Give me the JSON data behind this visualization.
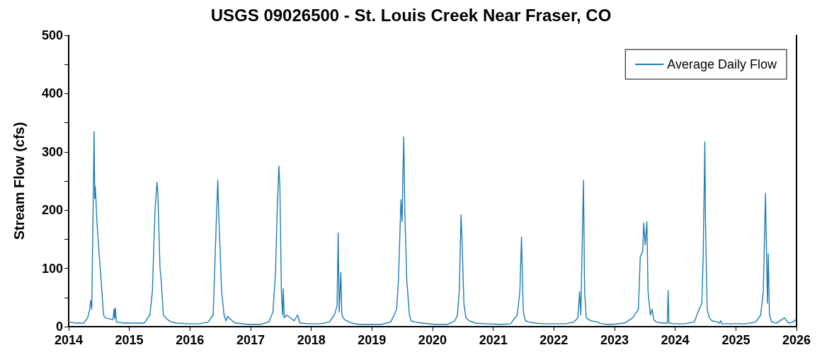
{
  "chart_data": {
    "type": "line",
    "title": "USGS 09026500 - St. Louis Creek Near Fraser, CO",
    "ylabel": "Stream Flow (cfs)",
    "x": [
      "2014-01-01",
      "2014-02-15",
      "2014-04-01",
      "2014-04-25",
      "2014-05-08",
      "2014-05-14",
      "2014-05-20",
      "2014-05-28",
      "2014-06-03",
      "2014-06-07",
      "2014-06-11",
      "2014-06-20",
      "2014-07-10",
      "2014-07-30",
      "2014-08-10",
      "2014-09-25",
      "2014-10-01",
      "2014-10-05",
      "2014-10-09",
      "2014-10-15",
      "2014-12-01",
      "2015-02-15",
      "2015-04-01",
      "2015-05-05",
      "2015-05-20",
      "2015-06-05",
      "2015-06-17",
      "2015-06-22",
      "2015-07-05",
      "2015-07-12",
      "2015-07-25",
      "2015-08-10",
      "2015-08-20",
      "2015-09-10",
      "2015-10-15",
      "2015-12-15",
      "2016-03-01",
      "2016-04-20",
      "2016-05-20",
      "2016-05-28",
      "2016-06-08",
      "2016-06-17",
      "2016-06-22",
      "2016-07-10",
      "2016-07-25",
      "2016-08-05",
      "2016-08-15",
      "2016-09-20",
      "2016-10-05",
      "2016-12-15",
      "2017-03-01",
      "2017-04-20",
      "2017-05-15",
      "2017-05-30",
      "2017-06-10",
      "2017-06-20",
      "2017-06-26",
      "2017-07-05",
      "2017-07-12",
      "2017-07-16",
      "2017-07-22",
      "2017-08-05",
      "2017-09-20",
      "2017-10-10",
      "2017-10-25",
      "2017-12-15",
      "2018-03-01",
      "2018-04-20",
      "2018-05-20",
      "2018-06-05",
      "2018-06-12",
      "2018-06-18",
      "2018-06-28",
      "2018-07-04",
      "2018-07-20",
      "2018-09-01",
      "2018-10-15",
      "2018-12-15",
      "2019-03-01",
      "2019-04-25",
      "2019-05-15",
      "2019-05-30",
      "2019-06-10",
      "2019-06-25",
      "2019-07-02",
      "2019-07-06",
      "2019-07-12",
      "2019-07-18",
      "2019-07-30",
      "2019-08-15",
      "2019-08-25",
      "2019-09-15",
      "2019-11-01",
      "2020-01-15",
      "2020-04-01",
      "2020-05-15",
      "2020-05-30",
      "2020-06-10",
      "2020-06-21",
      "2020-06-26",
      "2020-07-08",
      "2020-07-20",
      "2020-08-10",
      "2020-09-15",
      "2020-11-15",
      "2021-02-15",
      "2021-04-15",
      "2021-05-25",
      "2021-06-10",
      "2021-06-20",
      "2021-06-25",
      "2021-06-30",
      "2021-07-08",
      "2021-07-15",
      "2021-08-01",
      "2021-09-15",
      "2021-11-01",
      "2022-01-15",
      "2022-03-15",
      "2022-05-01",
      "2022-05-25",
      "2022-06-05",
      "2022-06-12",
      "2022-06-28",
      "2022-07-05",
      "2022-07-15",
      "2022-08-10",
      "2022-09-20",
      "2022-10-15",
      "2022-11-15",
      "2022-12-20",
      "2023-03-01",
      "2023-04-20",
      "2023-05-25",
      "2023-06-05",
      "2023-06-20",
      "2023-06-26",
      "2023-07-05",
      "2023-07-15",
      "2023-07-22",
      "2023-08-05",
      "2023-08-15",
      "2023-08-25",
      "2023-09-10",
      "2023-10-15",
      "2023-11-15",
      "2023-11-20",
      "2023-11-25",
      "2023-12-20",
      "2024-03-01",
      "2024-04-25",
      "2024-05-25",
      "2024-06-10",
      "2024-06-18",
      "2024-06-28",
      "2024-07-02",
      "2024-07-12",
      "2024-07-25",
      "2024-08-10",
      "2024-09-10",
      "2024-09-25",
      "2024-10-01",
      "2024-10-10",
      "2024-12-15",
      "2025-03-01",
      "2025-05-01",
      "2025-05-30",
      "2025-06-15",
      "2025-06-28",
      "2025-07-03",
      "2025-07-10",
      "2025-07-15",
      "2025-07-22",
      "2025-08-05",
      "2025-09-01",
      "2025-10-20",
      "2025-11-15",
      "2025-12-10",
      "2025-12-28"
    ],
    "series": [
      {
        "name": "Average Daily Flow",
        "color": "#1f7db4",
        "values": [
          8,
          6,
          6,
          15,
          30,
          45,
          30,
          200,
          335,
          220,
          240,
          180,
          100,
          20,
          15,
          12,
          30,
          14,
          32,
          8,
          6,
          6,
          6,
          20,
          60,
          200,
          248,
          230,
          100,
          80,
          20,
          15,
          12,
          8,
          6,
          5,
          5,
          8,
          20,
          85,
          180,
          252,
          200,
          60,
          20,
          10,
          18,
          8,
          6,
          4,
          4,
          8,
          25,
          90,
          200,
          276,
          240,
          60,
          20,
          65,
          15,
          20,
          10,
          20,
          6,
          5,
          5,
          8,
          20,
          35,
          161,
          25,
          93,
          20,
          12,
          6,
          4,
          4,
          4,
          8,
          20,
          30,
          80,
          218,
          180,
          250,
          326,
          200,
          80,
          20,
          10,
          8,
          6,
          4,
          4,
          10,
          20,
          60,
          192,
          155,
          40,
          15,
          10,
          6,
          5,
          4,
          5,
          20,
          60,
          154,
          90,
          30,
          15,
          10,
          8,
          6,
          5,
          5,
          5,
          8,
          15,
          60,
          20,
          251,
          60,
          15,
          10,
          8,
          5,
          4,
          4,
          6,
          15,
          30,
          120,
          130,
          178,
          140,
          180,
          60,
          20,
          30,
          12,
          8,
          6,
          6,
          62,
          6,
          5,
          5,
          8,
          30,
          40,
          120,
          317,
          180,
          30,
          15,
          10,
          8,
          6,
          10,
          5,
          5,
          5,
          8,
          20,
          60,
          229,
          150,
          40,
          125,
          20,
          8,
          6,
          15,
          6,
          8,
          12
        ]
      }
    ],
    "xlim": [
      "2014",
      "2026"
    ],
    "xticks": [
      "2014",
      "2015",
      "2016",
      "2017",
      "2018",
      "2019",
      "2020",
      "2021",
      "2022",
      "2023",
      "2024",
      "2025",
      "2026"
    ],
    "ylim": [
      0,
      500
    ],
    "yticks": [
      0,
      {
        "value": 50,
        "label": null
      },
      100,
      {
        "value": 150,
        "label": null
      },
      200,
      {
        "value": 250,
        "label": null
      },
      300,
      {
        "value": 350,
        "label": null
      },
      400,
      {
        "value": 450,
        "label": null
      },
      500
    ],
    "grid": false,
    "legend": "top right",
    "marker": "none",
    "line_style": "solid"
  }
}
